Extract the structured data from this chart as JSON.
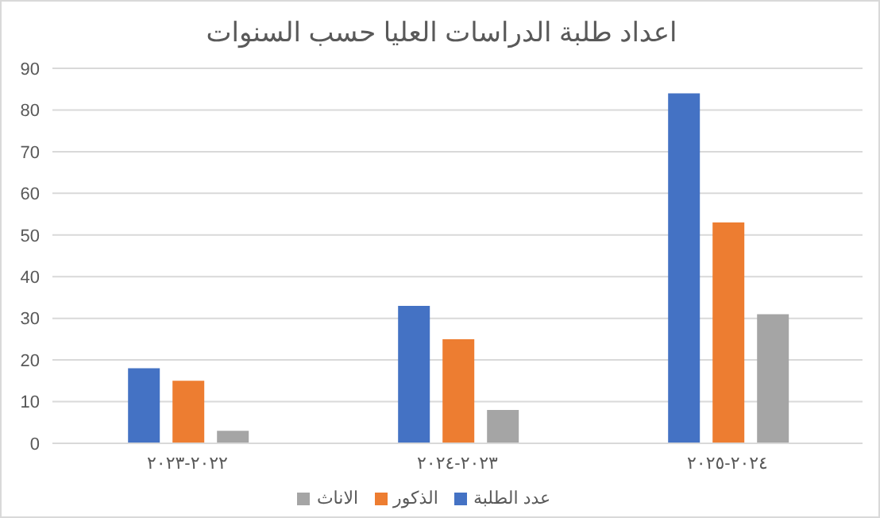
{
  "chart_data": {
    "type": "bar",
    "title": "اعداد طلبة الدراسات العليا حسب السنوات",
    "categories": [
      "٢٠٢٢-٢٠٢٣",
      "٢٠٢٣-٢٠٢٤",
      "٢٠٢٤-٢٠٢٥"
    ],
    "series": [
      {
        "name": "عدد الطلبة",
        "color": "#4472c4",
        "values": [
          18,
          33,
          84
        ]
      },
      {
        "name": "الذكور",
        "color": "#ed7d31",
        "values": [
          15,
          25,
          53
        ]
      },
      {
        "name": "الاناث",
        "color": "#a5a5a5",
        "values": [
          3,
          8,
          31
        ]
      }
    ],
    "ylim": [
      0,
      90
    ],
    "yticks": [
      0,
      10,
      20,
      30,
      40,
      50,
      60,
      70,
      80,
      90
    ],
    "grid": "y",
    "legend": "bottom"
  }
}
